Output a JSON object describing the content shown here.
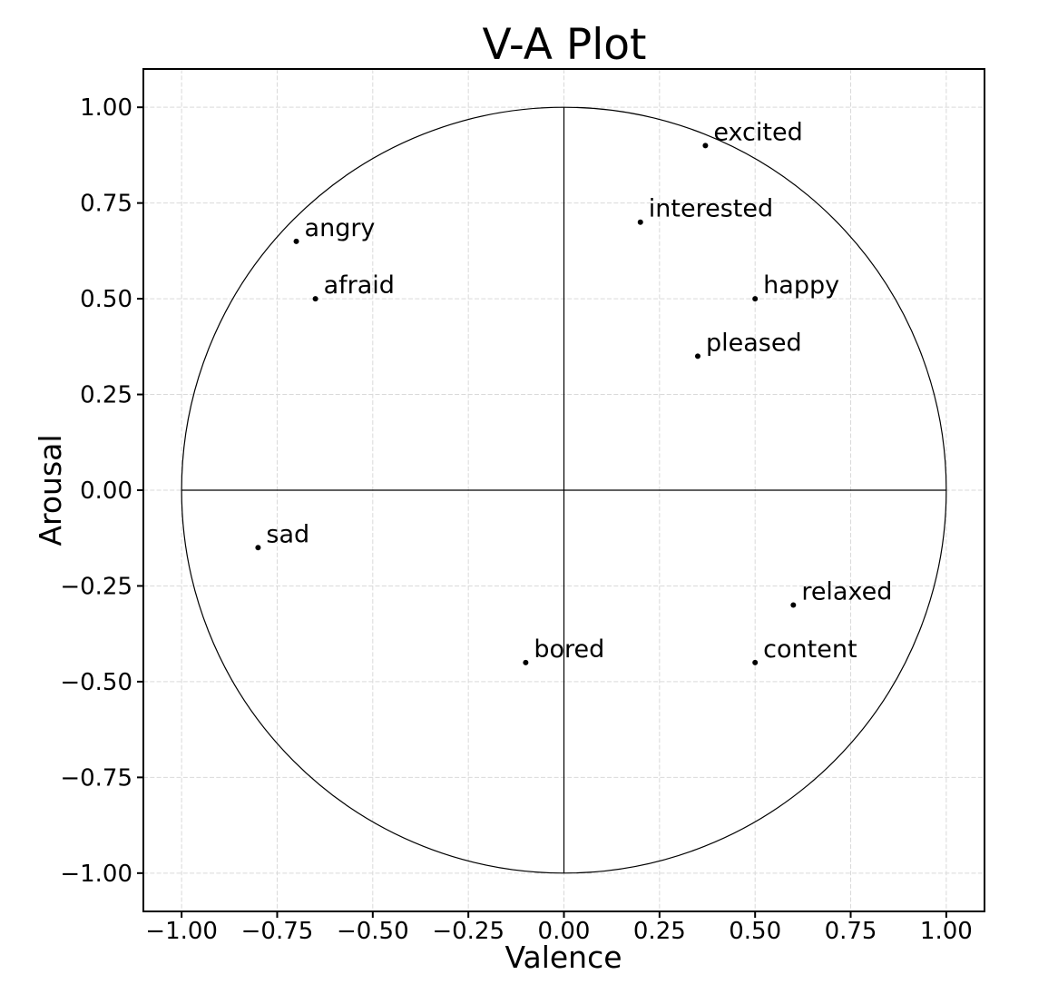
{
  "figure": {
    "background": "#ffffff",
    "text_color": "#000000"
  },
  "chart_data": {
    "type": "scatter",
    "title": "V-A Plot",
    "xlabel": "Valence",
    "ylabel": "Arousal",
    "xlim": [
      -1.1,
      1.1
    ],
    "ylim": [
      -1.1,
      1.1
    ],
    "xticks": [
      -1.0,
      -0.75,
      -0.5,
      -0.25,
      0.0,
      0.25,
      0.5,
      0.75,
      1.0
    ],
    "xtick_labels": [
      "−1.00",
      "−0.75",
      "−0.50",
      "−0.25",
      "0.00",
      "0.25",
      "0.50",
      "0.75",
      "1.00"
    ],
    "yticks": [
      -1.0,
      -0.75,
      -0.5,
      -0.25,
      0.0,
      0.25,
      0.5,
      0.75,
      1.0
    ],
    "ytick_labels": [
      "−1.00",
      "−0.75",
      "−0.50",
      "−0.25",
      "0.00",
      "0.25",
      "0.50",
      "0.75",
      "1.00"
    ],
    "grid": true,
    "grid_style": "dashed",
    "grid_color": "#d9d9d9",
    "unit_circle": true,
    "zero_axes": true,
    "legend": "none",
    "marker": "dot",
    "marker_color": "#000000",
    "points": [
      {
        "label": "excited",
        "valence": 0.37,
        "arousal": 0.9
      },
      {
        "label": "interested",
        "valence": 0.2,
        "arousal": 0.7
      },
      {
        "label": "happy",
        "valence": 0.5,
        "arousal": 0.5
      },
      {
        "label": "pleased",
        "valence": 0.35,
        "arousal": 0.35
      },
      {
        "label": "angry",
        "valence": -0.7,
        "arousal": 0.65
      },
      {
        "label": "afraid",
        "valence": -0.65,
        "arousal": 0.5
      },
      {
        "label": "sad",
        "valence": -0.8,
        "arousal": -0.15
      },
      {
        "label": "bored",
        "valence": -0.1,
        "arousal": -0.45
      },
      {
        "label": "relaxed",
        "valence": 0.6,
        "arousal": -0.3
      },
      {
        "label": "content",
        "valence": 0.5,
        "arousal": -0.45
      }
    ]
  }
}
